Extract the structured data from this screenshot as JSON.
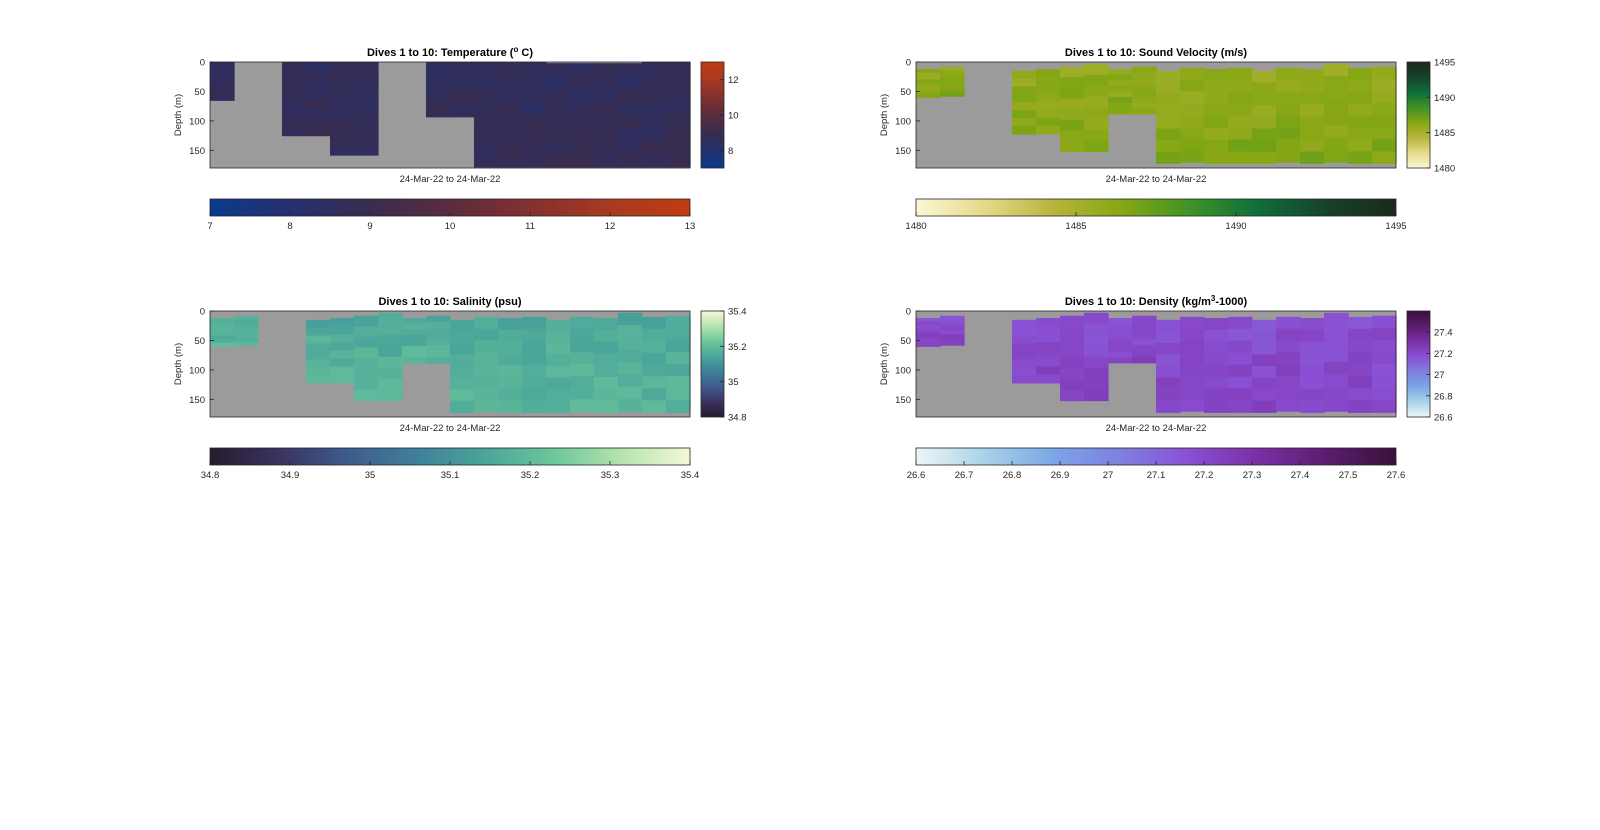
{
  "figure": {
    "background": "#ffffff",
    "nodata_color": "#9b9b9b"
  },
  "chart_data": [
    {
      "type": "heatmap",
      "id": "temperature",
      "title_text": "Dives 1 to 10: Temperature (",
      "title_sup": "o",
      "title_tail": " C)",
      "xlabel": "24-Mar-22 to 24-Mar-22",
      "ylabel": "Depth (m)",
      "y_ticks": [
        "0",
        "50",
        "100",
        "150"
      ],
      "ylim": [
        0,
        180
      ],
      "dives": 10,
      "columns_per_dive": 2,
      "data_bottom_depth": [
        65,
        0,
        0,
        125,
        125,
        158,
        158,
        0,
        0,
        93,
        93,
        178,
        178,
        178,
        178,
        178,
        178,
        178,
        178,
        178
      ],
      "data_top_depth": [
        0,
        0,
        0,
        0,
        0,
        0,
        0,
        0,
        0,
        0,
        0,
        0,
        0,
        0,
        2,
        2,
        2,
        2,
        0,
        0
      ],
      "field_value": 8.7,
      "colorbar_range": [
        7,
        13
      ],
      "colorbar_ticks": [
        "8",
        "10",
        "12"
      ],
      "colorbar_tick_values": [
        8,
        10,
        12
      ],
      "horizontal_colorbar_ticks": [
        "7",
        "8",
        "9",
        "10",
        "11",
        "12",
        "13"
      ],
      "colormap": [
        "#0a3a8c",
        "#25306e",
        "#382c4f",
        "#5a2c3e",
        "#84302f",
        "#a83a20",
        "#c13b10"
      ]
    },
    {
      "type": "heatmap",
      "id": "sound_velocity",
      "title_text": "Dives 1 to 10: Sound Velocity (m/s)",
      "title_sup": "",
      "title_tail": "",
      "xlabel": "24-Mar-22 to 24-Mar-22",
      "ylabel": "Depth (m)",
      "y_ticks": [
        "0",
        "50",
        "100",
        "150"
      ],
      "ylim": [
        0,
        180
      ],
      "dives": 10,
      "columns_per_dive": 2,
      "data_bottom_depth": [
        60,
        58,
        0,
        0,
        122,
        122,
        152,
        152,
        88,
        88,
        172,
        170,
        172,
        172,
        172,
        170,
        172,
        170,
        172,
        172
      ],
      "data_top_depth": [
        12,
        8,
        0,
        0,
        15,
        12,
        8,
        3,
        12,
        8,
        15,
        10,
        12,
        10,
        15,
        10,
        12,
        3,
        10,
        8
      ],
      "field_value": 1486.3,
      "colorbar_range": [
        1480,
        1495
      ],
      "colorbar_ticks": [
        "1480",
        "1485",
        "1490",
        "1495"
      ],
      "colorbar_tick_values": [
        1480,
        1485,
        1490,
        1495
      ],
      "horizontal_colorbar_ticks": [
        "1480",
        "1485",
        "1490",
        "1495"
      ],
      "colormap": [
        "#fbf7d6",
        "#e6d98b",
        "#b9b43b",
        "#86a713",
        "#3f9226",
        "#0d6e3a",
        "#17412c",
        "#1a2a1e"
      ]
    },
    {
      "type": "heatmap",
      "id": "salinity",
      "title_text": "Dives 1 to 10: Salinity (psu)",
      "title_sup": "",
      "title_tail": "",
      "xlabel": "24-Mar-22 to 24-Mar-22",
      "ylabel": "Depth (m)",
      "y_ticks": [
        "0",
        "50",
        "100",
        "150"
      ],
      "ylim": [
        0,
        180
      ],
      "dives": 10,
      "columns_per_dive": 2,
      "data_bottom_depth": [
        60,
        58,
        0,
        0,
        122,
        122,
        152,
        152,
        88,
        88,
        172,
        170,
        172,
        172,
        172,
        170,
        172,
        170,
        172,
        172
      ],
      "data_top_depth": [
        12,
        8,
        0,
        0,
        15,
        12,
        8,
        3,
        12,
        8,
        15,
        10,
        12,
        10,
        15,
        10,
        12,
        3,
        10,
        8
      ],
      "field_value": 35.17,
      "colorbar_range": [
        34.8,
        35.4
      ],
      "colorbar_ticks": [
        "34.8",
        "35",
        "35.2",
        "35.4"
      ],
      "colorbar_tick_values": [
        34.8,
        35.0,
        35.2,
        35.4
      ],
      "horizontal_colorbar_ticks": [
        "34.8",
        "34.9",
        "35",
        "35.1",
        "35.2",
        "35.3",
        "35.4"
      ],
      "colormap": [
        "#261c2e",
        "#3b3261",
        "#3e5b8c",
        "#3f7f9b",
        "#4aa59a",
        "#6cc69a",
        "#b5e3ae",
        "#f5f8d6"
      ]
    },
    {
      "type": "heatmap",
      "id": "density",
      "title_text": "Dives 1 to 10: Density (kg/m",
      "title_sup": "3",
      "title_tail": "-1000)",
      "xlabel": "24-Mar-22 to 24-Mar-22",
      "ylabel": "Depth (m)",
      "y_ticks": [
        "0",
        "50",
        "100",
        "150"
      ],
      "ylim": [
        0,
        180
      ],
      "dives": 10,
      "columns_per_dive": 2,
      "data_bottom_depth": [
        60,
        58,
        0,
        0,
        122,
        122,
        152,
        152,
        88,
        88,
        172,
        170,
        172,
        172,
        172,
        170,
        172,
        170,
        172,
        172
      ],
      "data_top_depth": [
        12,
        8,
        0,
        0,
        15,
        12,
        8,
        3,
        12,
        8,
        15,
        10,
        12,
        10,
        15,
        10,
        12,
        3,
        10,
        8
      ],
      "field_value": 27.2,
      "colorbar_range": [
        26.6,
        27.6
      ],
      "colorbar_ticks": [
        "26.6",
        "26.8",
        "27",
        "27.2",
        "27.4"
      ],
      "colorbar_tick_values": [
        26.6,
        26.8,
        27.0,
        27.2,
        27.4
      ],
      "horizontal_colorbar_ticks": [
        "26.6",
        "26.7",
        "26.8",
        "26.9",
        "27",
        "27.1",
        "27.2",
        "27.3",
        "27.4",
        "27.5",
        "27.6"
      ],
      "colormap": [
        "#eef6f6",
        "#a8d3e8",
        "#7aa6e6",
        "#7f7fe0",
        "#8a4fd3",
        "#7a2fa4",
        "#5a1d6e",
        "#3b0f3a"
      ]
    }
  ]
}
